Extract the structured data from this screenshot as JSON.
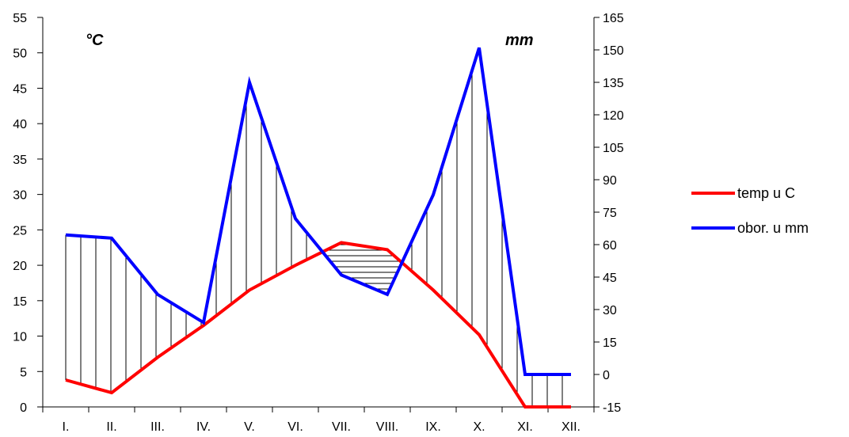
{
  "chart_data": {
    "type": "line",
    "categories": [
      "I.",
      "II.",
      "III.",
      "IV.",
      "V.",
      "VI.",
      "VII.",
      "VIII.",
      "IX.",
      "X.",
      "XI.",
      "XII."
    ],
    "series": [
      {
        "name": "temp u C",
        "axis": "left",
        "color": "#ff0000",
        "values": [
          3.8,
          2.0,
          7.0,
          11.5,
          16.5,
          20.0,
          23.2,
          22.2,
          16.5,
          10.2,
          0.0,
          0.0
        ]
      },
      {
        "name": "obor. u mm",
        "axis": "right",
        "color": "#0000ff",
        "values": [
          64.5,
          63,
          37,
          24,
          135,
          72,
          46,
          37,
          83,
          151,
          0,
          0
        ]
      }
    ],
    "left_axis": {
      "unit_label": "°C",
      "min": 0,
      "max": 55,
      "step": 5,
      "ticks": [
        "0",
        "5",
        "10",
        "15",
        "20",
        "25",
        "30",
        "35",
        "40",
        "45",
        "50",
        "55"
      ]
    },
    "right_axis": {
      "unit_label": "mm",
      "min": -15,
      "max": 165,
      "step": 15,
      "ticks": [
        "-15",
        "0",
        "15",
        "30",
        "45",
        "60",
        "75",
        "90",
        "105",
        "120",
        "135",
        "150",
        "165"
      ]
    },
    "hatching": "vertical lines where precipitation is above temperature, horizontal lines where temperature is above precipitation",
    "grid": false,
    "legend_position": "right"
  }
}
